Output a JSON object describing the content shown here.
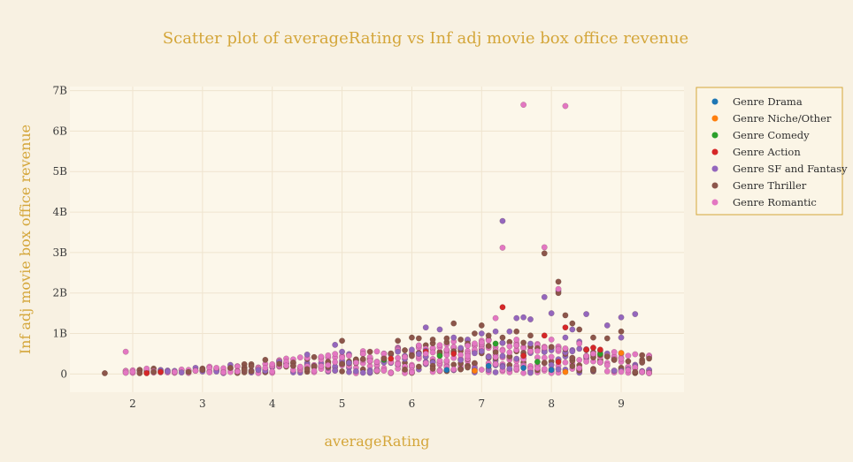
{
  "chart_data": {
    "type": "scatter",
    "title": "Scatter plot of averageRating vs Inf adj movie box office revenue",
    "xlabel": "averageRating",
    "ylabel": "Inf adj movie box office revenue",
    "xlim": [
      1.1,
      9.9
    ],
    "ylim": [
      -0.45,
      7.1
    ],
    "xticks": [
      2,
      3,
      4,
      5,
      6,
      7,
      8,
      9
    ],
    "yticks": [
      0,
      1,
      2,
      3,
      4,
      5,
      6,
      7
    ],
    "ytick_labels": [
      "0",
      "1B",
      "2B",
      "3B",
      "4B",
      "5B",
      "6B",
      "7B"
    ],
    "y_unit": "billions",
    "grid": true,
    "legend_position": "top-right",
    "series": [
      {
        "name": "Genre Drama",
        "color": "#1f77b4",
        "points": [
          [
            6.5,
            0.1
          ],
          [
            7.1,
            0.2
          ],
          [
            7.6,
            0.15
          ],
          [
            8.0,
            0.1
          ]
        ]
      },
      {
        "name": "Genre Niche/Other",
        "color": "#ff7f0e",
        "points": [
          [
            9.0,
            0.52
          ],
          [
            8.2,
            0.05
          ],
          [
            6.9,
            0.08
          ]
        ]
      },
      {
        "name": "Genre Comedy",
        "color": "#2ca02c",
        "points": [
          [
            5.6,
            0.35
          ],
          [
            7.2,
            0.75
          ],
          [
            8.7,
            0.5
          ],
          [
            6.4,
            0.45
          ],
          [
            7.8,
            0.3
          ]
        ]
      },
      {
        "name": "Genre Action",
        "color": "#d62728",
        "points": [
          [
            2.2,
            0.02
          ],
          [
            2.4,
            0.05
          ],
          [
            4.8,
            0.25
          ],
          [
            5.7,
            0.38
          ],
          [
            6.6,
            0.5
          ],
          [
            7.3,
            1.65
          ],
          [
            7.9,
            0.95
          ],
          [
            8.1,
            0.3
          ],
          [
            8.2,
            1.15
          ],
          [
            8.5,
            0.6
          ],
          [
            8.6,
            0.65
          ],
          [
            8.7,
            0.6
          ],
          [
            6.2,
            0.55
          ],
          [
            7.6,
            0.45
          ]
        ]
      },
      {
        "name": "Genre SF and Fantasy",
        "color": "#9467bd",
        "points": [
          [
            3.8,
            0.1
          ],
          [
            4.1,
            0.3
          ],
          [
            4.5,
            0.48
          ],
          [
            4.9,
            0.72
          ],
          [
            5.0,
            0.55
          ],
          [
            5.5,
            0.3
          ],
          [
            5.8,
            0.55
          ],
          [
            6.0,
            0.6
          ],
          [
            6.2,
            1.15
          ],
          [
            6.4,
            1.1
          ],
          [
            6.6,
            0.9
          ],
          [
            6.8,
            0.85
          ],
          [
            7.0,
            1.0
          ],
          [
            7.2,
            1.05
          ],
          [
            7.3,
            3.78
          ],
          [
            7.4,
            1.05
          ],
          [
            7.5,
            1.38
          ],
          [
            7.6,
            1.4
          ],
          [
            7.7,
            1.35
          ],
          [
            7.9,
            1.9
          ],
          [
            8.0,
            1.5
          ],
          [
            8.1,
            2.05
          ],
          [
            8.2,
            0.9
          ],
          [
            8.3,
            1.1
          ],
          [
            8.5,
            1.48
          ],
          [
            8.8,
            1.2
          ],
          [
            9.0,
            1.4
          ],
          [
            9.2,
            1.48
          ],
          [
            9.0,
            0.9
          ],
          [
            8.4,
            0.8
          ]
        ]
      },
      {
        "name": "Genre Thriller",
        "color": "#8c564b",
        "points": [
          [
            1.6,
            0.02
          ],
          [
            2.1,
            0.02
          ],
          [
            2.3,
            0.05
          ],
          [
            2.8,
            0.05
          ],
          [
            3.0,
            0.1
          ],
          [
            3.4,
            0.15
          ],
          [
            3.6,
            0.1
          ],
          [
            3.9,
            0.35
          ],
          [
            4.1,
            0.25
          ],
          [
            4.3,
            0.2
          ],
          [
            4.5,
            0.12
          ],
          [
            4.8,
            0.3
          ],
          [
            5.0,
            0.82
          ],
          [
            5.2,
            0.35
          ],
          [
            5.4,
            0.55
          ],
          [
            5.6,
            0.38
          ],
          [
            5.8,
            0.82
          ],
          [
            6.0,
            0.9
          ],
          [
            6.1,
            0.88
          ],
          [
            6.3,
            0.85
          ],
          [
            6.5,
            0.88
          ],
          [
            6.6,
            1.25
          ],
          [
            6.7,
            0.85
          ],
          [
            6.8,
            0.75
          ],
          [
            6.9,
            1.0
          ],
          [
            7.0,
            1.2
          ],
          [
            7.1,
            0.95
          ],
          [
            7.3,
            0.9
          ],
          [
            7.5,
            1.05
          ],
          [
            7.7,
            0.95
          ],
          [
            7.9,
            2.98
          ],
          [
            8.1,
            2.28
          ],
          [
            8.1,
            2.0
          ],
          [
            8.2,
            1.45
          ],
          [
            8.3,
            1.25
          ],
          [
            8.4,
            1.1
          ],
          [
            8.6,
            0.9
          ],
          [
            8.8,
            0.88
          ],
          [
            9.0,
            1.05
          ],
          [
            9.2,
            0.05
          ],
          [
            9.4,
            0.02
          ],
          [
            8.9,
            0.35
          ]
        ]
      },
      {
        "name": "Genre Romantic",
        "color": "#e377c2",
        "points": [
          [
            1.9,
            0.55
          ],
          [
            1.9,
            0.03
          ],
          [
            2.6,
            0.05
          ],
          [
            3.1,
            0.04
          ],
          [
            3.5,
            0.06
          ],
          [
            3.9,
            0.15
          ],
          [
            4.4,
            0.18
          ],
          [
            4.8,
            0.22
          ],
          [
            5.2,
            0.28
          ],
          [
            5.5,
            0.3
          ],
          [
            5.9,
            0.42
          ],
          [
            6.2,
            0.5
          ],
          [
            6.5,
            0.6
          ],
          [
            6.8,
            0.7
          ],
          [
            7.0,
            0.78
          ],
          [
            7.2,
            1.38
          ],
          [
            7.3,
            3.12
          ],
          [
            7.5,
            0.85
          ],
          [
            7.6,
            6.65
          ],
          [
            7.9,
            3.13
          ],
          [
            8.0,
            0.85
          ],
          [
            8.1,
            2.1
          ],
          [
            8.2,
            6.62
          ],
          [
            8.4,
            0.75
          ],
          [
            8.6,
            0.5
          ],
          [
            9.3,
            0.05
          ],
          [
            9.4,
            0.02
          ]
        ]
      }
    ],
    "dense_band": {
      "x_from": 1.9,
      "x_to": 9.4,
      "note_levels": [
        0.1,
        0.2,
        0.3,
        0.45,
        0.6
      ]
    }
  }
}
